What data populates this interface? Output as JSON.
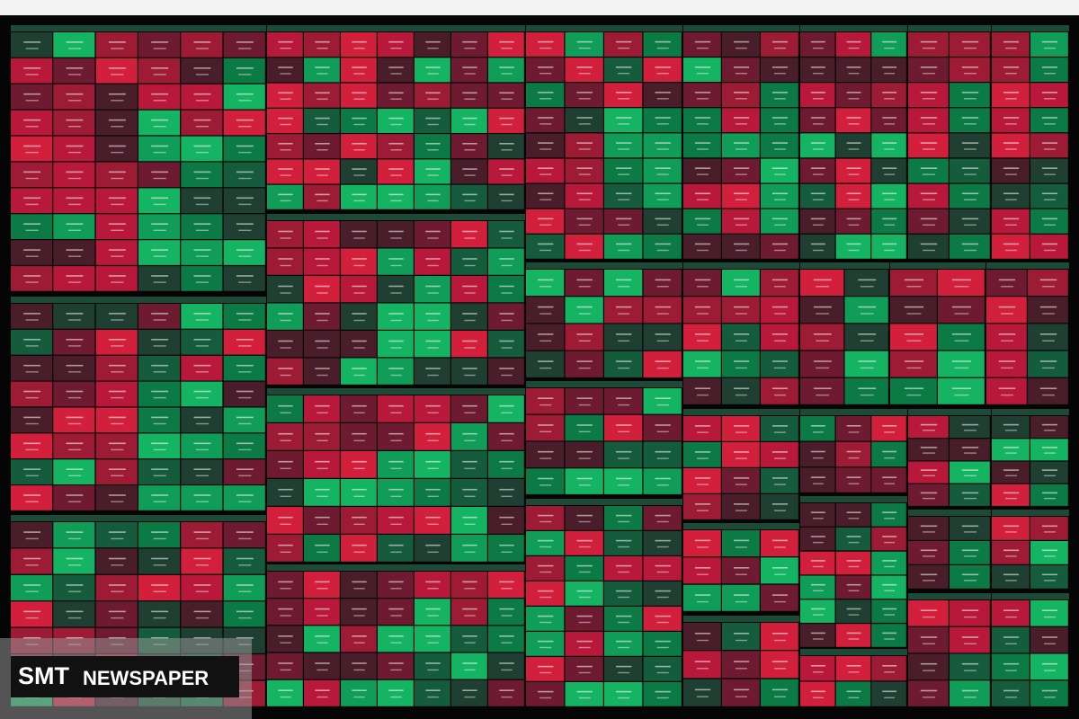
{
  "watermark": {
    "brand": "SMT",
    "name": "NEWSPAPER"
  }
}
